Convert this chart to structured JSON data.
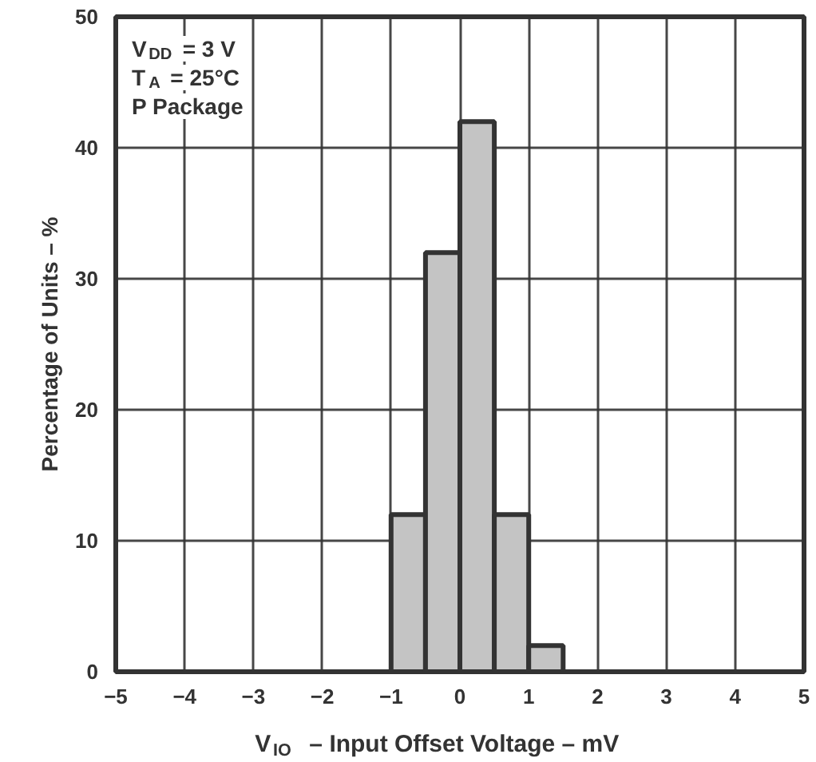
{
  "chart_data": {
    "type": "histogram",
    "xlabel": "V$_{IO}$ – Input Offset Voltage – mV",
    "ylabel": "Percentage of Units – %",
    "annotations": [
      "V$_{DD}$ = 3 V",
      "T$_{A}$ = 25°C",
      "P Package"
    ],
    "bins": [
      -1,
      -0.5,
      0,
      0.5,
      1,
      1.5
    ],
    "values": [
      12,
      32,
      42,
      12,
      2
    ],
    "color": "#c4c4c4",
    "xlim": [
      -5,
      5
    ],
    "ylim": [
      0,
      50
    ],
    "xticks": [
      {
        "value": -5,
        "label": "−5"
      },
      {
        "value": -4,
        "label": "−4"
      },
      {
        "value": -3,
        "label": "−3"
      },
      {
        "value": -2,
        "label": "−2"
      },
      {
        "value": -1,
        "label": "−1"
      },
      0,
      1,
      2,
      3,
      4,
      5
    ],
    "yticks": [
      0,
      10,
      20,
      30,
      40,
      50
    ],
    "grid": true
  }
}
